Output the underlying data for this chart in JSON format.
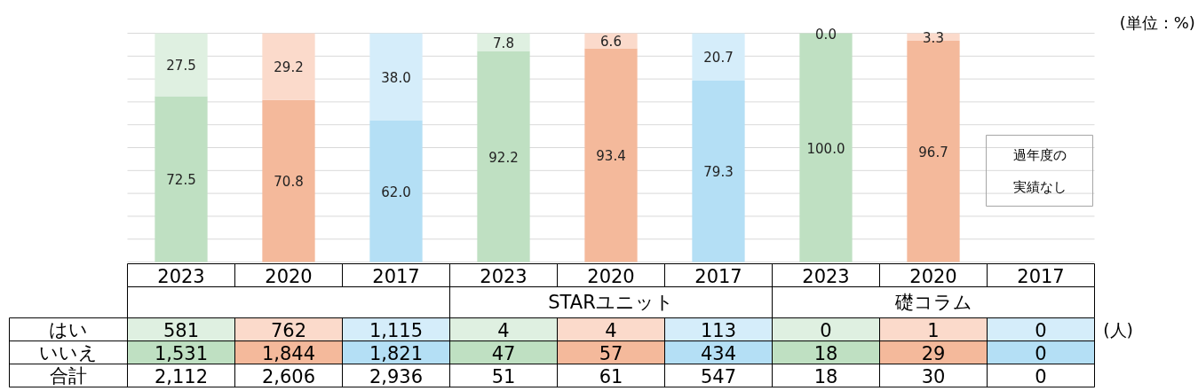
{
  "chart_data": [
    {
      "type": "bar",
      "stacked": true,
      "categories": [
        null,
        null,
        null,
        null,
        null,
        null,
        null,
        null,
        null
      ],
      "series": [
        {
          "colors": [
            "#bfe0c2",
            "#f4b99b",
            "#b4dff5",
            "#bfe0c2",
            "#f4b99b",
            "#b4dff5",
            "#bfe0c2",
            "#f4b99b",
            "#b4dff5"
          ],
          "values": [
            72.5,
            70.8,
            62.0,
            92.2,
            93.4,
            79.3,
            100.0,
            96.7,
            null
          ],
          "value_labels": [
            "72.5",
            "70.8",
            "62.0",
            "92.2",
            "93.4",
            "79.3",
            "100.0",
            "96.7",
            null
          ]
        },
        {
          "colors": [
            "#dff0e1",
            "#fbdacb",
            "#d5edfa",
            "#dff0e1",
            "#fbdacb",
            "#d5edfa",
            "#dff0e1",
            "#fbdacb",
            "#d5edfa"
          ],
          "values": [
            27.5,
            29.2,
            38.0,
            7.8,
            6.6,
            20.7,
            0.0,
            3.3,
            null
          ],
          "value_labels": [
            "27.5",
            "29.2",
            "38.0",
            "7.8",
            "6.6",
            "20.7",
            "0.0",
            "3.3",
            null
          ]
        }
      ],
      "ylim": [
        0,
        100
      ],
      "yticks": [
        {
          "value": 0,
          "label": null
        },
        {
          "value": 10,
          "label": null
        },
        {
          "value": 20,
          "label": null
        },
        {
          "value": 30,
          "label": null
        },
        {
          "value": 40,
          "label": null
        },
        {
          "value": 50,
          "label": null
        },
        {
          "value": 60,
          "label": null
        },
        {
          "value": 70,
          "label": null
        },
        {
          "value": 80,
          "label": null
        },
        {
          "value": 90,
          "label": null
        },
        {
          "value": 100,
          "label": null
        }
      ],
      "grid": "y",
      "annotations": [
        "(単位：%)",
        "過年度の実績なし"
      ]
    },
    {
      "type": "heatmap",
      "data_labels": true,
      "categories": [
        "2023",
        "2020",
        "2017",
        "2023",
        "2020",
        "2017",
        "2023",
        "2020",
        "2017"
      ],
      "y_categories": [
        "はい",
        "いいえ",
        "合計"
      ],
      "cells": [
        [
          581,
          762,
          1115,
          4,
          4,
          113,
          0,
          1,
          0
        ],
        [
          1531,
          1844,
          1821,
          47,
          57,
          434,
          18,
          29,
          0
        ],
        [
          2112,
          2606,
          2936,
          51,
          61,
          547,
          18,
          30,
          0
        ]
      ],
      "cell_labels": [
        [
          "581",
          "762",
          "1,115",
          "4",
          "4",
          "113",
          "0",
          "1",
          "0"
        ],
        [
          "1,531",
          "1,844",
          "1,821",
          "47",
          "57",
          "434",
          "18",
          "29",
          "0"
        ],
        [
          "2,112",
          "2,606",
          "2,936",
          "51",
          "61",
          "547",
          "18",
          "30",
          "0"
        ]
      ],
      "colors": [
        [
          "#dff0e1",
          "#fbdacb",
          "#d5edfa",
          "#dff0e1",
          "#fbdacb",
          "#d5edfa",
          "#dff0e1",
          "#fbdacb",
          "#d5edfa"
        ],
        [
          "#bfe0c2",
          "#f4b99b",
          "#b4dff5",
          "#bfe0c2",
          "#f4b99b",
          "#b4dff5",
          "#bfe0c2",
          "#f4b99b",
          "#b4dff5"
        ],
        [
          null,
          null,
          null,
          null,
          null,
          null,
          null,
          null,
          null
        ]
      ],
      "annotations": [
        "STARユニット",
        "礎コラム",
        "(人)"
      ]
    }
  ]
}
